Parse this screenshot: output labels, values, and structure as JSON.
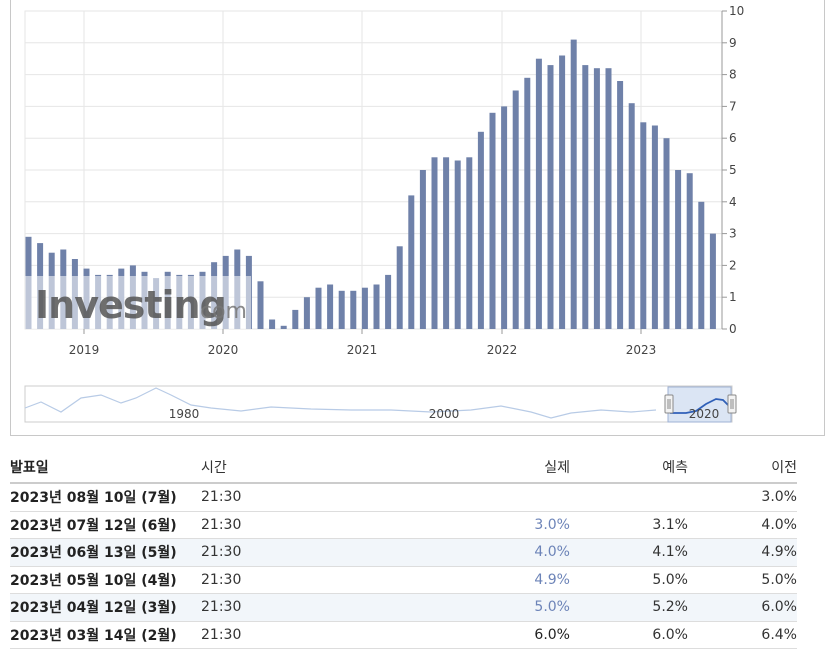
{
  "chart_data": {
    "type": "bar",
    "ylim": [
      0,
      10
    ],
    "yticks": [
      "0",
      "1",
      "2",
      "3",
      "4",
      "5",
      "6",
      "7",
      "8",
      "9",
      "10"
    ],
    "xtick_labels": [
      "2019",
      "2020",
      "2021",
      "2022",
      "2023"
    ],
    "watermark": "Investing.com",
    "navigator_labels": [
      "1980",
      "2000",
      "2020"
    ],
    "colors": {
      "bar": "#6f81a9",
      "grid": "#e6e6e6",
      "navigator_fill": "#dbe5f4",
      "navigator_line": "#3060b8"
    },
    "series": [
      {
        "values": [
          2.9,
          2.7,
          2.4,
          2.5,
          2.2,
          1.9,
          1.7,
          1.7,
          1.9,
          2.0,
          1.8,
          1.6,
          1.8,
          1.7,
          1.7,
          1.8,
          2.1,
          2.3,
          2.5,
          2.3,
          1.5,
          0.3,
          0.1,
          0.6,
          1.0,
          1.3,
          1.4,
          1.2,
          1.2,
          1.3,
          1.4,
          1.7,
          2.6,
          4.2,
          5.0,
          5.4,
          5.4,
          5.3,
          5.4,
          6.2,
          6.8,
          7.0,
          7.5,
          7.9,
          8.5,
          8.3,
          8.6,
          9.1,
          8.3,
          8.2,
          8.2,
          7.8,
          7.1,
          6.5,
          6.4,
          6.0,
          5.0,
          4.9,
          4.0,
          3.0
        ]
      }
    ]
  },
  "table": {
    "headers": {
      "date": "발표일",
      "time": "시간",
      "actual": "실제",
      "forecast": "예측",
      "previous": "이전"
    },
    "rows": [
      {
        "date": "2023년 08월 10일 (7월)",
        "time": "21:30",
        "actual": "",
        "actual_color": "",
        "forecast": "",
        "previous": "3.0%"
      },
      {
        "date": "2023년 07월 12일 (6월)",
        "time": "21:30",
        "actual": "3.0%",
        "actual_color": "blue",
        "forecast": "3.1%",
        "previous": "4.0%"
      },
      {
        "date": "2023년 06월 13일 (5월)",
        "time": "21:30",
        "actual": "4.0%",
        "actual_color": "blue",
        "forecast": "4.1%",
        "previous": "4.9%"
      },
      {
        "date": "2023년 05월 10일 (4월)",
        "time": "21:30",
        "actual": "4.9%",
        "actual_color": "blue",
        "forecast": "5.0%",
        "previous": "5.0%"
      },
      {
        "date": "2023년 04월 12일 (3월)",
        "time": "21:30",
        "actual": "5.0%",
        "actual_color": "blue",
        "forecast": "5.2%",
        "previous": "6.0%"
      },
      {
        "date": "2023년 03월 14일 (2월)",
        "time": "21:30",
        "actual": "6.0%",
        "actual_color": "dark",
        "forecast": "6.0%",
        "previous": "6.4%"
      }
    ]
  }
}
